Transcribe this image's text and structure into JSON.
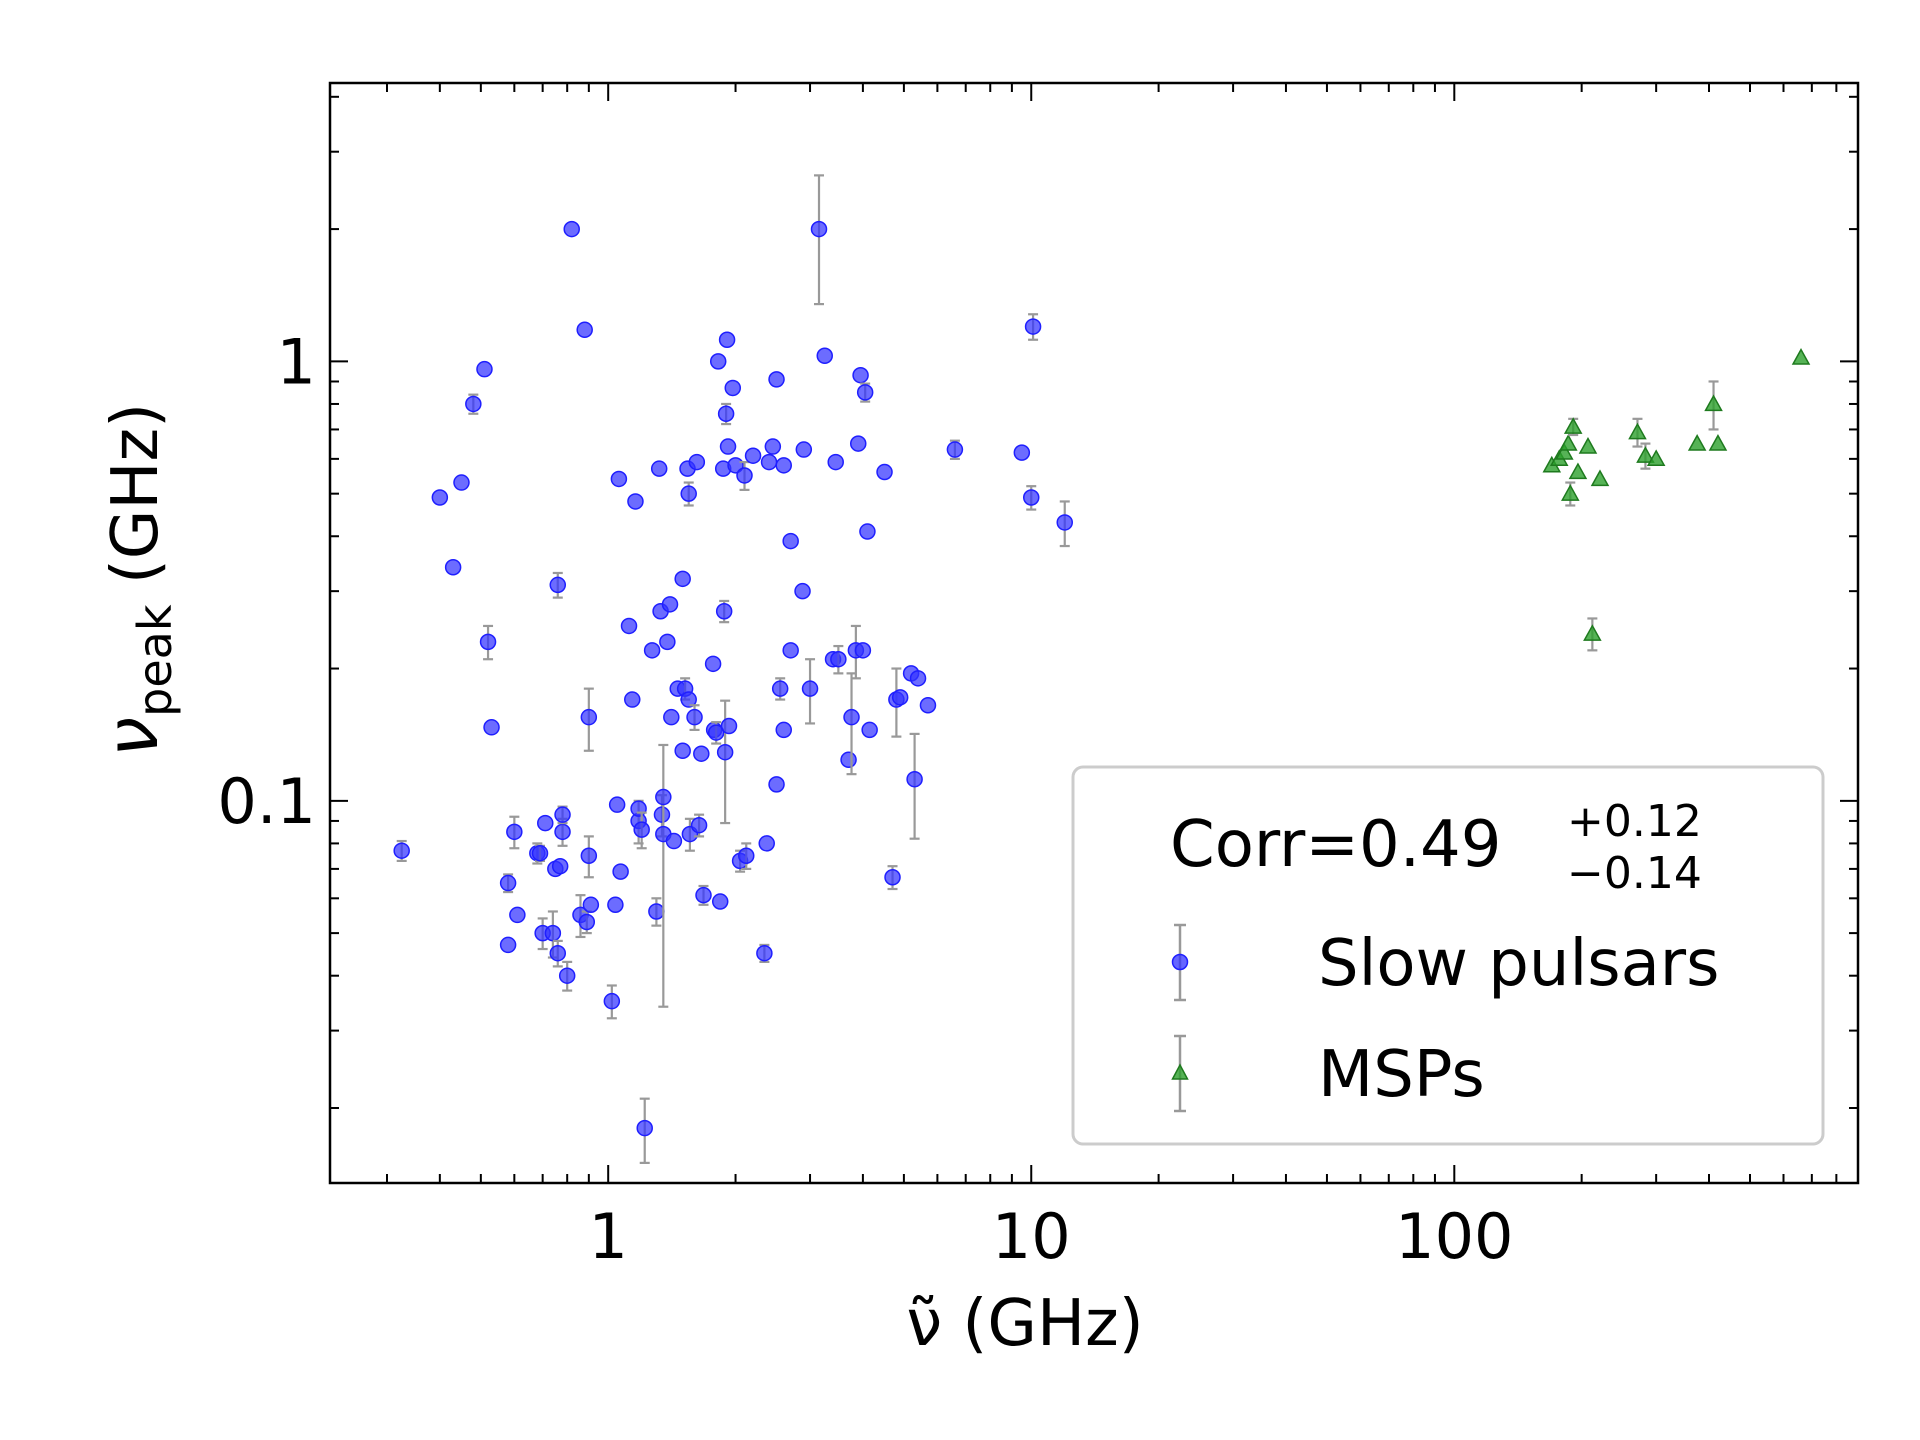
{
  "chart_data": {
    "type": "scatter",
    "xlabel": "ν̃ (GHz)",
    "ylabel": "ν",
    "ylabel_sub": "peak",
    "ylabel_unit": " (GHz)",
    "xscale": "log",
    "yscale": "log",
    "xlim": [
      0.22,
      900
    ],
    "ylim": [
      0.0135,
      4.3
    ],
    "xticks": [
      {
        "value": 1,
        "label": "1"
      },
      {
        "value": 10,
        "label": "10"
      },
      {
        "value": 100,
        "label": "100"
      }
    ],
    "yticks": [
      {
        "value": 0.1,
        "label": "0.1"
      },
      {
        "value": 1,
        "label": "1"
      }
    ],
    "grid": false,
    "legend": {
      "placement": "lower-right",
      "title_main": "Corr=0.49",
      "title_sup": "+0.12",
      "title_sub": "−0.14"
    },
    "series": [
      {
        "name": "Slow pulsars",
        "marker": "circle",
        "color": "#1f1fff",
        "points": [
          [
            0.325,
            0.077,
            0.004
          ],
          [
            0.4,
            0.49,
            0
          ],
          [
            0.43,
            0.34,
            0
          ],
          [
            0.45,
            0.53,
            0
          ],
          [
            0.48,
            0.8,
            0.04
          ],
          [
            0.51,
            0.96,
            0
          ],
          [
            0.52,
            0.23,
            0.02
          ],
          [
            0.53,
            0.147,
            0
          ],
          [
            0.58,
            0.065,
            0.003
          ],
          [
            0.58,
            0.047,
            0
          ],
          [
            0.6,
            0.085,
            0.007
          ],
          [
            0.61,
            0.055,
            0
          ],
          [
            0.68,
            0.076,
            0.004
          ],
          [
            0.69,
            0.076,
            0.003
          ],
          [
            0.7,
            0.05,
            0.004
          ],
          [
            0.71,
            0.089,
            0
          ],
          [
            0.74,
            0.05,
            0.006
          ],
          [
            0.75,
            0.07,
            0
          ],
          [
            0.76,
            0.045,
            0.003
          ],
          [
            0.76,
            0.31,
            0.02
          ],
          [
            0.77,
            0.071,
            0
          ],
          [
            0.78,
            0.085,
            0.006
          ],
          [
            0.78,
            0.093,
            0.004
          ],
          [
            0.8,
            0.04,
            0.003
          ],
          [
            0.82,
            2.0,
            0
          ],
          [
            0.86,
            0.055,
            0.006
          ],
          [
            0.88,
            1.18,
            0
          ],
          [
            0.89,
            0.053,
            0.003
          ],
          [
            0.9,
            0.075,
            0.008
          ],
          [
            0.9,
            0.155,
            0.025
          ],
          [
            0.91,
            0.058,
            0
          ],
          [
            1.02,
            0.035,
            0.003
          ],
          [
            1.04,
            0.058,
            0
          ],
          [
            1.05,
            0.098,
            0
          ],
          [
            1.06,
            0.54,
            0
          ],
          [
            1.07,
            0.069,
            0
          ],
          [
            1.12,
            0.25,
            0
          ],
          [
            1.14,
            0.17,
            0
          ],
          [
            1.16,
            0.48,
            0
          ],
          [
            1.18,
            0.09,
            0.01
          ],
          [
            1.18,
            0.096,
            0
          ],
          [
            1.2,
            0.086,
            0.008
          ],
          [
            1.22,
            0.018,
            0.003
          ],
          [
            1.27,
            0.22,
            0
          ],
          [
            1.3,
            0.056,
            0.004
          ],
          [
            1.32,
            0.57,
            0
          ],
          [
            1.33,
            0.27,
            0
          ],
          [
            1.34,
            0.093,
            0.01
          ],
          [
            1.35,
            0.084,
            0.05
          ],
          [
            1.35,
            0.102,
            0
          ],
          [
            1.38,
            0.23,
            0
          ],
          [
            1.4,
            0.28,
            0
          ],
          [
            1.41,
            0.155,
            0
          ],
          [
            1.43,
            0.081,
            0
          ],
          [
            1.46,
            0.18,
            0
          ],
          [
            1.5,
            0.32,
            0
          ],
          [
            1.5,
            0.13,
            0
          ],
          [
            1.52,
            0.18,
            0.01
          ],
          [
            1.54,
            0.57,
            0
          ],
          [
            1.55,
            0.17,
            0
          ],
          [
            1.55,
            0.5,
            0.03
          ],
          [
            1.56,
            0.084,
            0.007
          ],
          [
            1.6,
            0.155,
            0.01
          ],
          [
            1.62,
            0.59,
            0
          ],
          [
            1.64,
            0.088,
            0.005
          ],
          [
            1.66,
            0.128,
            0
          ],
          [
            1.68,
            0.061,
            0.003
          ],
          [
            1.77,
            0.205,
            0
          ],
          [
            1.78,
            0.145,
            0
          ],
          [
            1.8,
            0.143,
            0.008
          ],
          [
            1.82,
            1.0,
            0
          ],
          [
            1.84,
            0.059,
            0
          ],
          [
            1.87,
            0.57,
            0
          ],
          [
            1.88,
            0.27,
            0.015
          ],
          [
            1.89,
            0.129,
            0.04
          ],
          [
            1.9,
            0.76,
            0.04
          ],
          [
            1.91,
            1.12,
            0
          ],
          [
            1.92,
            0.64,
            0
          ],
          [
            1.93,
            0.148,
            0
          ],
          [
            1.97,
            0.87,
            0
          ],
          [
            2.0,
            0.58,
            0
          ],
          [
            2.05,
            0.073,
            0.004
          ],
          [
            2.12,
            0.075,
            0.005
          ],
          [
            2.1,
            0.55,
            0.04
          ],
          [
            2.2,
            0.61,
            0
          ],
          [
            2.34,
            0.045,
            0.002
          ],
          [
            2.37,
            0.08,
            0
          ],
          [
            2.4,
            0.59,
            0
          ],
          [
            2.45,
            0.64,
            0
          ],
          [
            2.5,
            0.91,
            0
          ],
          [
            2.5,
            0.109,
            0
          ],
          [
            2.55,
            0.18,
            0.01
          ],
          [
            2.6,
            0.58,
            0
          ],
          [
            2.6,
            0.145,
            0
          ],
          [
            2.7,
            0.22,
            0
          ],
          [
            2.7,
            0.39,
            0
          ],
          [
            2.88,
            0.3,
            0
          ],
          [
            2.9,
            0.63,
            0
          ],
          [
            3.0,
            0.18,
            0.03
          ],
          [
            3.15,
            2.0,
            0.65
          ],
          [
            3.25,
            1.03,
            0
          ],
          [
            3.4,
            0.21,
            0
          ],
          [
            3.45,
            0.59,
            0
          ],
          [
            3.5,
            0.21,
            0.015
          ],
          [
            3.7,
            0.124,
            0
          ],
          [
            3.76,
            0.155,
            0.04
          ],
          [
            3.85,
            0.22,
            0.03
          ],
          [
            3.9,
            0.65,
            0
          ],
          [
            3.95,
            0.93,
            0
          ],
          [
            4.0,
            0.22,
            0
          ],
          [
            4.05,
            0.85,
            0.04
          ],
          [
            4.1,
            0.41,
            0
          ],
          [
            4.15,
            0.145,
            0
          ],
          [
            4.5,
            0.56,
            0
          ],
          [
            4.7,
            0.067,
            0.004
          ],
          [
            4.8,
            0.17,
            0.03
          ],
          [
            4.9,
            0.172,
            0
          ],
          [
            5.2,
            0.195,
            0
          ],
          [
            5.3,
            0.112,
            0.03
          ],
          [
            5.4,
            0.19,
            0
          ],
          [
            5.7,
            0.165,
            0
          ],
          [
            6.6,
            0.63,
            0.03
          ],
          [
            9.5,
            0.62,
            0
          ],
          [
            10.0,
            0.49,
            0.03
          ],
          [
            10.1,
            1.2,
            0.08
          ],
          [
            12.0,
            0.43,
            0.05
          ]
        ]
      },
      {
        "name": "MSPs",
        "marker": "triangle",
        "color": "#2ca02c",
        "points": [
          [
            170,
            0.58,
            0
          ],
          [
            177,
            0.6,
            0
          ],
          [
            182,
            0.62,
            0
          ],
          [
            186,
            0.65,
            0
          ],
          [
            188,
            0.5,
            0.03
          ],
          [
            191,
            0.71,
            0.03
          ],
          [
            196,
            0.56,
            0
          ],
          [
            207,
            0.64,
            0
          ],
          [
            212,
            0.24,
            0.02
          ],
          [
            221,
            0.54,
            0
          ],
          [
            271,
            0.69,
            0.05
          ],
          [
            283,
            0.61,
            0.04
          ],
          [
            300,
            0.6,
            0
          ],
          [
            375,
            0.65,
            0
          ],
          [
            410,
            0.8,
            0.1
          ],
          [
            420,
            0.65,
            0
          ],
          [
            660,
            1.02,
            0
          ]
        ]
      }
    ]
  }
}
